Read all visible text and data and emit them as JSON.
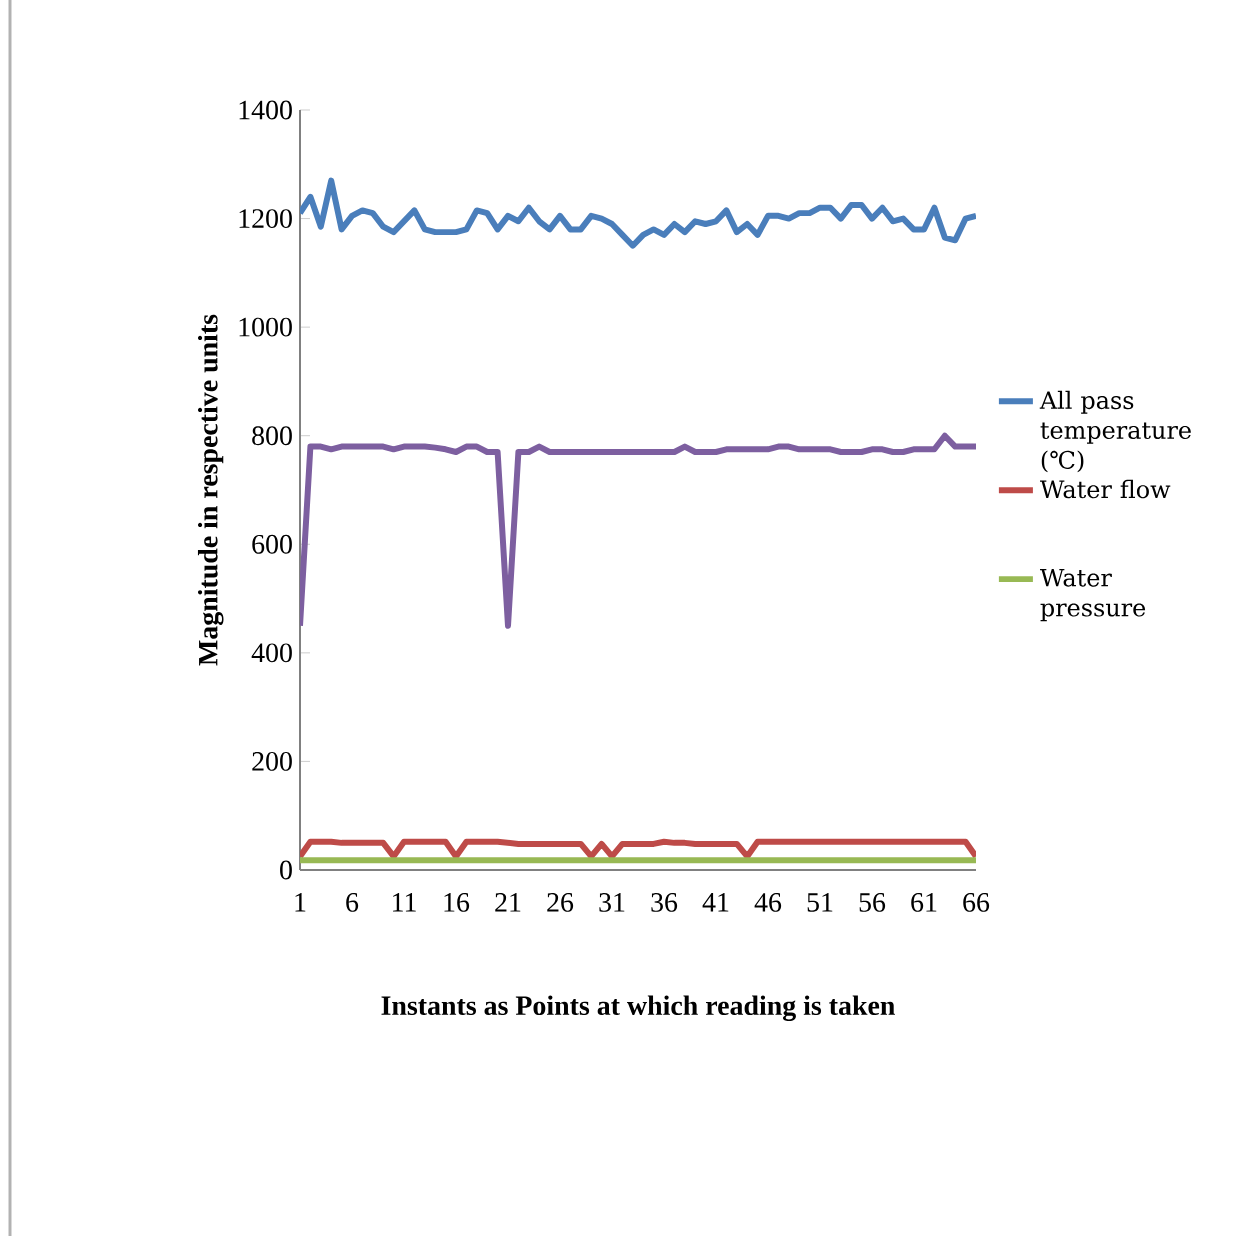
{
  "chart_data": {
    "type": "line",
    "xlabel": "Instants as Points at which reading is taken",
    "ylabel": "Magnitude in respective units",
    "categories": [
      "1",
      null,
      null,
      null,
      null,
      "6",
      null,
      null,
      null,
      null,
      "11",
      null,
      null,
      null,
      null,
      "16",
      null,
      null,
      null,
      null,
      "21",
      null,
      null,
      null,
      null,
      "26",
      null,
      null,
      null,
      null,
      "31",
      null,
      null,
      null,
      null,
      "36",
      null,
      null,
      null,
      null,
      "41",
      null,
      null,
      null,
      null,
      "46",
      null,
      null,
      null,
      null,
      "51",
      null,
      null,
      null,
      null,
      "56",
      null,
      null,
      null,
      null,
      "61",
      null,
      null,
      null,
      null,
      "66"
    ],
    "ylim": [
      0,
      1400
    ],
    "yticks": [
      0,
      200,
      400,
      600,
      800,
      1000,
      1200,
      1400
    ],
    "legend": "right",
    "grid": false,
    "series": [
      {
        "name": "All pass temperature (℃)",
        "color": "#4a7ebb",
        "values": [
          1210,
          1240,
          1185,
          1270,
          1180,
          1205,
          1215,
          1210,
          1185,
          1175,
          1195,
          1215,
          1180,
          1175,
          1175,
          1175,
          1180,
          1215,
          1210,
          1180,
          1205,
          1195,
          1220,
          1195,
          1180,
          1205,
          1180,
          1180,
          1205,
          1200,
          1190,
          1170,
          1150,
          1170,
          1180,
          1170,
          1190,
          1175,
          1195,
          1190,
          1195,
          1215,
          1175,
          1190,
          1170,
          1205,
          1205,
          1200,
          1210,
          1210,
          1220,
          1220,
          1200,
          1225,
          1225,
          1200,
          1220,
          1195,
          1200,
          1180,
          1180,
          1220,
          1165,
          1160,
          1200,
          1205
        ]
      },
      {
        "color": "#7d5fa0",
        "values": [
          450,
          780,
          780,
          775,
          780,
          780,
          780,
          780,
          780,
          775,
          780,
          780,
          780,
          778,
          775,
          770,
          780,
          780,
          770,
          770,
          450,
          770,
          770,
          780,
          770,
          770,
          770,
          770,
          770,
          770,
          770,
          770,
          770,
          770,
          770,
          770,
          770,
          780,
          770,
          770,
          770,
          775,
          775,
          775,
          775,
          775,
          780,
          780,
          775,
          775,
          775,
          775,
          770,
          770,
          770,
          775,
          775,
          770,
          770,
          775,
          775,
          775,
          800,
          780,
          780,
          780
        ]
      },
      {
        "name": "Water flow",
        "color": "#be4b48",
        "values": [
          25,
          52,
          52,
          52,
          50,
          50,
          50,
          50,
          50,
          25,
          52,
          52,
          52,
          52,
          52,
          25,
          52,
          52,
          52,
          52,
          50,
          48,
          48,
          48,
          48,
          48,
          48,
          48,
          25,
          48,
          25,
          48,
          48,
          48,
          48,
          52,
          50,
          50,
          48,
          48,
          48,
          48,
          48,
          25,
          52,
          52,
          52,
          52,
          52,
          52,
          52,
          52,
          52,
          52,
          52,
          52,
          52,
          52,
          52,
          52,
          52,
          52,
          52,
          52,
          52,
          25
        ]
      },
      {
        "name": "Water pressure",
        "color": "#98b954",
        "values": [
          18,
          18,
          18,
          18,
          18,
          18,
          18,
          18,
          18,
          18,
          18,
          18,
          18,
          18,
          18,
          18,
          18,
          18,
          18,
          18,
          18,
          18,
          18,
          18,
          18,
          18,
          18,
          18,
          18,
          18,
          18,
          18,
          18,
          18,
          18,
          18,
          18,
          18,
          18,
          18,
          18,
          18,
          18,
          18,
          18,
          18,
          18,
          18,
          18,
          18,
          18,
          18,
          18,
          18,
          18,
          18,
          18,
          18,
          18,
          18,
          18,
          18,
          18,
          18,
          18,
          18
        ]
      }
    ]
  }
}
